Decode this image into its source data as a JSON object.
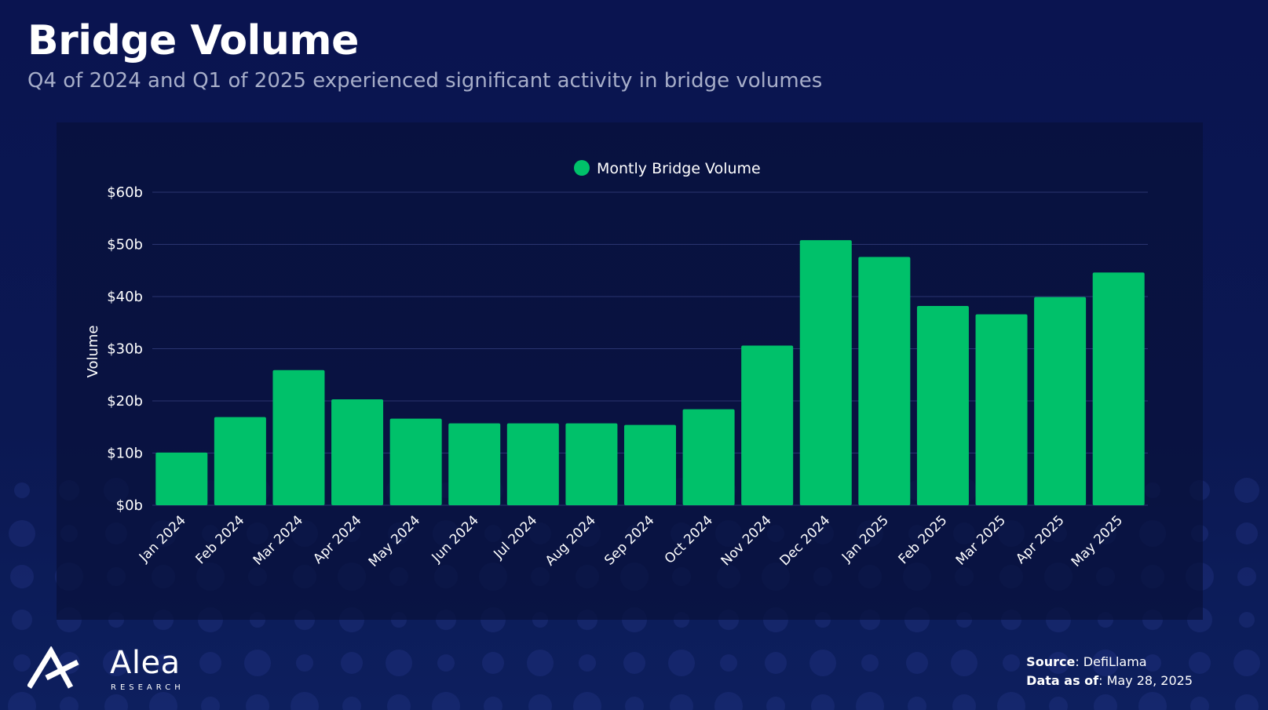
{
  "header": {
    "title": "Bridge Volume",
    "subtitle": "Q4 of 2024 and Q1 of 2025 experienced significant activity in bridge volumes"
  },
  "chart_data": {
    "type": "bar",
    "categories": [
      "Jan 2024",
      "Feb 2024",
      "Mar 2024",
      "Apr 2024",
      "May 2024",
      "Jun 2024",
      "Jul 2024",
      "Aug 2024",
      "Sep 2024",
      "Oct 2024",
      "Nov 2024",
      "Dec 2024",
      "Jan 2025",
      "Feb 2025",
      "Mar 2025",
      "Apr 2025",
      "May 2025"
    ],
    "series": [
      {
        "name": "Montly Bridge Volume",
        "color": "#00c16a",
        "values": [
          10.1,
          16.9,
          25.9,
          20.3,
          16.6,
          15.7,
          15.7,
          15.7,
          15.4,
          18.4,
          30.6,
          50.8,
          47.6,
          38.2,
          36.6,
          39.9,
          44.6
        ]
      }
    ],
    "ylabel": "Volume",
    "xlabel": "",
    "ylim": [
      0,
      60
    ],
    "yticks": [
      0,
      10,
      20,
      30,
      40,
      50,
      60
    ],
    "ytick_labels": [
      "$0b",
      "$10b",
      "$20b",
      "$30b",
      "$40b",
      "$50b",
      "$60b"
    ],
    "grid": true,
    "legend_position": "top-center"
  },
  "footer": {
    "source_label": "Source",
    "source_value": ": DefiLlama",
    "asof_label": "Data as of",
    "asof_value": ": May 28, 2025"
  },
  "brand": {
    "name": "Alea",
    "tagline": "RESEARCH",
    "logo_icon": "alea-logo-icon"
  },
  "colors": {
    "background": "#0a1550",
    "bar": "#00c16a",
    "grid": "#2a3470",
    "text_muted": "#a7aec9"
  }
}
